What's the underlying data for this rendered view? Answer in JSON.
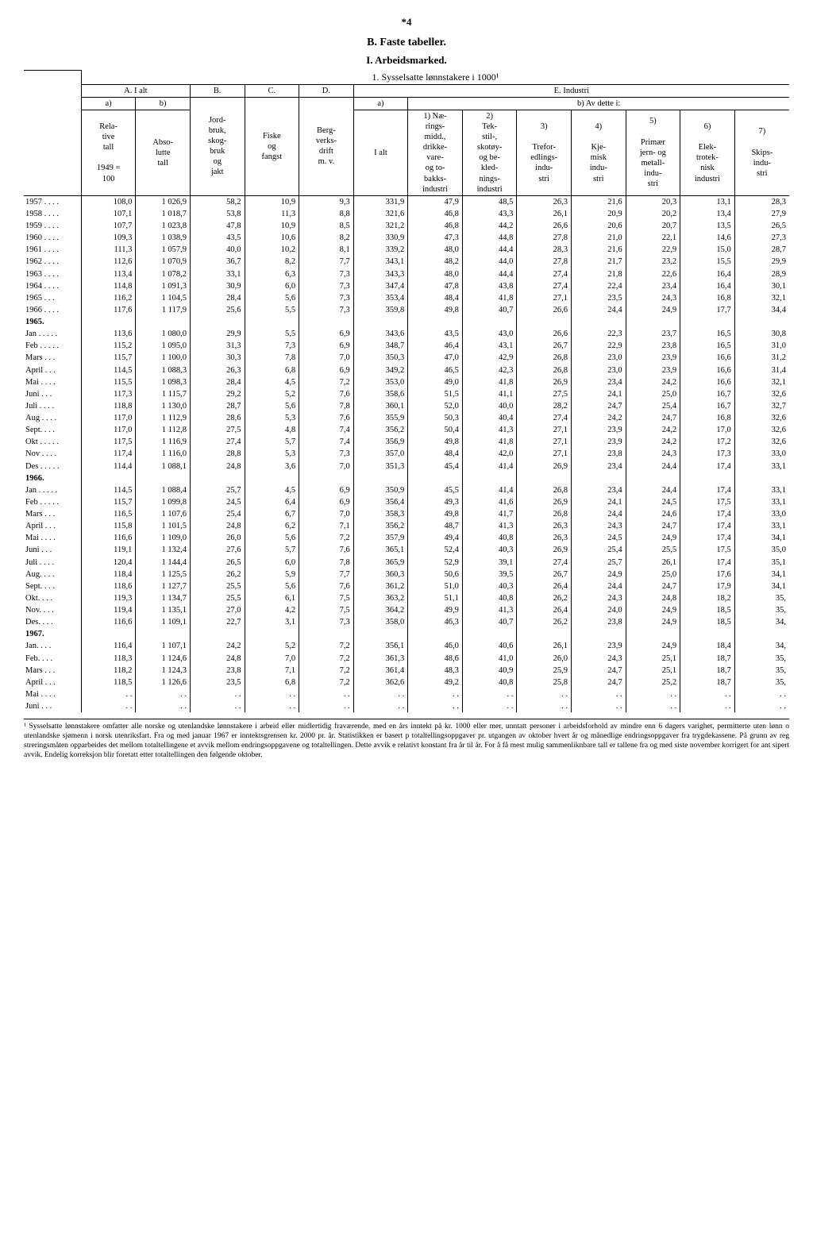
{
  "page_number": "*4",
  "headings": {
    "B": "B. Faste tabeller.",
    "I": "I. Arbeidsmarked.",
    "sub1": "1. Sysselsatte lønnstakere i 1000¹"
  },
  "header": {
    "group_A": "A. I alt",
    "group_B": "B.",
    "group_C": "C.",
    "group_D": "D.",
    "group_E": "E. Industri",
    "a": "a)",
    "b": "b)",
    "b_av_dette": "b) Av dette i:",
    "col_rel": "Rela-\ntive\ntall\n\n1949 =\n100",
    "col_abs": "Abso-\nlutte\ntall",
    "col_jord": "Jord-\nbruk,\nskog-\nbruk\nog\njakt",
    "col_fiske": "Fiske\nog\nfangst",
    "col_berg": "Berg-\nverks-\ndrift\nm. v.",
    "col_ialt": "I alt",
    "col_1": "1) Næ-\nrings-\nmidd.,\ndrikke-\nvare-\nog to-\nbakks-\nindustri",
    "col_2": "2)\nTek-\nstil-,\nskotøy-\nog be-\nkled-\nnings-\nindustri",
    "col_3": "3)\n\nTrefor-\nedlings-\nindu-\nstri",
    "col_4": "4)\n\nKje-\nmisk\nindu-\nstri",
    "col_5": "5)\n\nPrimær\njern- og\nmetall-\nindu-\nstri",
    "col_6": "6)\n\nElek-\ntrotek-\nnisk\nindustri",
    "col_7": "7)\n\nSkips-\nindu-\nstri"
  },
  "rows": [
    {
      "l": "1957 . . . .",
      "d": [
        "108,0",
        "1 026,9",
        "58,2",
        "10,9",
        "9,3",
        "331,9",
        "47,9",
        "48,5",
        "26,3",
        "21,6",
        "20,3",
        "13,1",
        "28,3"
      ]
    },
    {
      "l": "1958 . . . .",
      "d": [
        "107,1",
        "1 018,7",
        "53,8",
        "11,3",
        "8,8",
        "321,6",
        "46,8",
        "43,3",
        "26,1",
        "20,9",
        "20,2",
        "13,4",
        "27,9"
      ]
    },
    {
      "l": "1959 . . . .",
      "d": [
        "107,7",
        "1 023,8",
        "47,8",
        "10,9",
        "8,5",
        "321,2",
        "46,8",
        "44,2",
        "26,6",
        "20,6",
        "20,7",
        "13,5",
        "26,5"
      ]
    },
    {
      "l": "1960 . . . .",
      "d": [
        "109,3",
        "1 038,9",
        "43,5",
        "10,6",
        "8,2",
        "330,9",
        "47,3",
        "44,8",
        "27,8",
        "21,0",
        "22,1",
        "14,6",
        "27,3"
      ]
    },
    {
      "l": "1961 . . . .",
      "d": [
        "111,3",
        "1 057,9",
        "40,0",
        "10,2",
        "8,1",
        "339,2",
        "48,0",
        "44,4",
        "28,3",
        "21,6",
        "22,9",
        "15,0",
        "28,7"
      ]
    },
    {
      "l": "1962 . . . .",
      "d": [
        "112,6",
        "1 070,9",
        "36,7",
        "8,2",
        "7,7",
        "343,1",
        "48,2",
        "44,0",
        "27,8",
        "21,7",
        "23,2",
        "15,5",
        "29,9"
      ]
    },
    {
      "l": "1963 . . . .",
      "d": [
        "113,4",
        "1 078,2",
        "33,1",
        "6,3",
        "7,3",
        "343,3",
        "48,0",
        "44,4",
        "27,4",
        "21,8",
        "22,6",
        "16,4",
        "28,9"
      ]
    },
    {
      "l": "1964 . . . .",
      "d": [
        "114,8",
        "1 091,3",
        "30,9",
        "6,0",
        "7,3",
        "347,4",
        "47,8",
        "43,8",
        "27,4",
        "22,4",
        "23,4",
        "16,4",
        "30,1"
      ]
    },
    {
      "l": "1965 . . .",
      "d": [
        "116,2",
        "1 104,5",
        "28,4",
        "5,6",
        "7,3",
        "353,4",
        "48,4",
        "41,8",
        "27,1",
        "23,5",
        "24,3",
        "16,8",
        "32,1"
      ]
    },
    {
      "l": "1966 . . . .",
      "d": [
        "117,6",
        "1 117,9",
        "25,6",
        "5,5",
        "7,3",
        "359,8",
        "49,8",
        "40,7",
        "26,6",
        "24,4",
        "24,9",
        "17,7",
        "34,4"
      ]
    },
    {
      "l": "1965.",
      "bold": true,
      "d": [
        "",
        "",
        "",
        "",
        "",
        "",
        "",
        "",
        "",
        "",
        "",
        "",
        ""
      ]
    },
    {
      "l": "Jan . . . . .",
      "d": [
        "113,6",
        "1 080,0",
        "29,9",
        "5,5",
        "6,9",
        "343,6",
        "43,5",
        "43,0",
        "26,6",
        "22,3",
        "23,7",
        "16,5",
        "30,8"
      ]
    },
    {
      "l": "Feb . . . . .",
      "d": [
        "115,2",
        "1 095,0",
        "31,3",
        "7,3",
        "6,9",
        "348,7",
        "46,4",
        "43,1",
        "26,7",
        "22,9",
        "23,8",
        "16,5",
        "31,0"
      ]
    },
    {
      "l": "Mars . . .",
      "d": [
        "115,7",
        "1 100,0",
        "30,3",
        "7,8",
        "7,0",
        "350,3",
        "47,0",
        "42,9",
        "26,8",
        "23,0",
        "23,9",
        "16,6",
        "31,2"
      ]
    },
    {
      "l": "April . . .",
      "d": [
        "114,5",
        "1 088,3",
        "26,3",
        "6,8",
        "6,9",
        "349,2",
        "46,5",
        "42,3",
        "26,8",
        "23,0",
        "23,9",
        "16,6",
        "31,4"
      ]
    },
    {
      "l": "Mai . . . .",
      "d": [
        "115,5",
        "1 098,3",
        "28,4",
        "4,5",
        "7,2",
        "353,0",
        "49,0",
        "41,8",
        "26,9",
        "23,4",
        "24,2",
        "16,6",
        "32,1"
      ]
    },
    {
      "l": "Juni . . .",
      "d": [
        "117,3",
        "1 115,7",
        "29,2",
        "5,2",
        "7,6",
        "358,6",
        "51,5",
        "41,1",
        "27,5",
        "24,1",
        "25,0",
        "16,7",
        "32,6"
      ]
    },
    {
      "l": "Juli . . . .",
      "d": [
        "118,8",
        "1 130,0",
        "28,7",
        "5,6",
        "7,8",
        "360,1",
        "52,0",
        "40,0",
        "28,2",
        "24,7",
        "25,4",
        "16,7",
        "32,7"
      ]
    },
    {
      "l": "Aug . . . .",
      "d": [
        "117,0",
        "1 112,9",
        "28,6",
        "5,3",
        "7,6",
        "355,9",
        "50,3",
        "40,4",
        "27,4",
        "24,2",
        "24,7",
        "16,8",
        "32,6"
      ]
    },
    {
      "l": "Sept. . . .",
      "d": [
        "117,0",
        "1 112,8",
        "27,5",
        "4,8",
        "7,4",
        "356,2",
        "50,4",
        "41,3",
        "27,1",
        "23,9",
        "24,2",
        "17,0",
        "32,6"
      ]
    },
    {
      "l": "Okt . . . . .",
      "d": [
        "117,5",
        "1 116,9",
        "27,4",
        "5,7",
        "7,4",
        "356,9",
        "49,8",
        "41,8",
        "27,1",
        "23,9",
        "24,2",
        "17,2",
        "32,6"
      ]
    },
    {
      "l": "Nov . . . .",
      "d": [
        "117,4",
        "1 116,0",
        "28,8",
        "5,3",
        "7,3",
        "357,0",
        "48,4",
        "42,0",
        "27,1",
        "23,8",
        "24,3",
        "17,3",
        "33,0"
      ]
    },
    {
      "l": "Des . . . . .",
      "d": [
        "114,4",
        "1 088,1",
        "24,8",
        "3,6",
        "7,0",
        "351,3",
        "45,4",
        "41,4",
        "26,9",
        "23,4",
        "24,4",
        "17,4",
        "33,1"
      ]
    },
    {
      "l": "1966.",
      "bold": true,
      "d": [
        "",
        "",
        "",
        "",
        "",
        "",
        "",
        "",
        "",
        "",
        "",
        "",
        ""
      ]
    },
    {
      "l": "Jan . . . . .",
      "d": [
        "114,5",
        "1 088,4",
        "25,7",
        "4,5",
        "6,9",
        "350,9",
        "45,5",
        "41,4",
        "26,8",
        "23,4",
        "24,4",
        "17,4",
        "33,1"
      ]
    },
    {
      "l": "Feb . . . . .",
      "d": [
        "115,7",
        "1 099,8",
        "24,5",
        "6,4",
        "6,9",
        "356,4",
        "49,3",
        "41,6",
        "26,9",
        "24,1",
        "24,5",
        "17,5",
        "33,1"
      ]
    },
    {
      "l": "Mars . . .",
      "d": [
        "116,5",
        "1 107,6",
        "25,4",
        "6,7",
        "7,0",
        "358,3",
        "49,8",
        "41,7",
        "26,8",
        "24,4",
        "24,6",
        "17,4",
        "33,0"
      ]
    },
    {
      "l": "April . . .",
      "d": [
        "115,8",
        "1 101,5",
        "24,8",
        "6,2",
        "7,1",
        "356,2",
        "48,7",
        "41,3",
        "26,3",
        "24,3",
        "24,7",
        "17,4",
        "33,1"
      ]
    },
    {
      "l": "Mai . . . .",
      "d": [
        "116,6",
        "1 109,0",
        "26,0",
        "5,6",
        "7,2",
        "357,9",
        "49,4",
        "40,8",
        "26,3",
        "24,5",
        "24,9",
        "17,4",
        "34,1"
      ]
    },
    {
      "l": "Juni . . .",
      "d": [
        "119,1",
        "1 132,4",
        "27,6",
        "5,7",
        "7,6",
        "365,1",
        "52,4",
        "40,3",
        "26,9",
        "25,4",
        "25,5",
        "17,5",
        "35,0"
      ]
    },
    {
      "l": "Juli . . . .",
      "d": [
        "120,4",
        "1 144,4",
        "26,5",
        "6,0",
        "7,8",
        "365,9",
        "52,9",
        "39,1",
        "27,4",
        "25,7",
        "26,1",
        "17,4",
        "35,1"
      ]
    },
    {
      "l": "Aug. . . .",
      "d": [
        "118,4",
        "1 125,5",
        "26,2",
        "5,9",
        "7,7",
        "360,3",
        "50,6",
        "39,5",
        "26,7",
        "24,9",
        "25,0",
        "17,6",
        "34,1"
      ]
    },
    {
      "l": "Sept. . . .",
      "d": [
        "118,6",
        "1 127,7",
        "25,5",
        "5,6",
        "7,6",
        "361,2",
        "51,0",
        "40,3",
        "26,4",
        "24,4",
        "24,7",
        "17,9",
        "34,1"
      ]
    },
    {
      "l": "Okt. . . .",
      "d": [
        "119,3",
        "1 134,7",
        "25,5",
        "6,1",
        "7,5",
        "363,2",
        "51,1",
        "40,8",
        "26,2",
        "24,3",
        "24,8",
        "18,2",
        "35,"
      ]
    },
    {
      "l": "Nov. . . .",
      "d": [
        "119,4",
        "1 135,1",
        "27,0",
        "4,2",
        "7,5",
        "364,2",
        "49,9",
        "41,3",
        "26,4",
        "24,0",
        "24,9",
        "18,5",
        "35,"
      ]
    },
    {
      "l": "Des. . . .",
      "d": [
        "116,6",
        "1 109,1",
        "22,7",
        "3,1",
        "7,3",
        "358,0",
        "46,3",
        "40,7",
        "26,2",
        "23,8",
        "24,9",
        "18,5",
        "34,"
      ]
    },
    {
      "l": "1967.",
      "bold": true,
      "d": [
        "",
        "",
        "",
        "",
        "",
        "",
        "",
        "",
        "",
        "",
        "",
        "",
        ""
      ]
    },
    {
      "l": "Jan. . . .",
      "d": [
        "116,4",
        "1 107,1",
        "24,2",
        "5,2",
        "7,2",
        "356,1",
        "46,0",
        "40,6",
        "26,1",
        "23,9",
        "24,9",
        "18,4",
        "34,"
      ]
    },
    {
      "l": "Feb. . . .",
      "d": [
        "118,3",
        "1 124,6",
        "24,8",
        "7,0",
        "7,2",
        "361,3",
        "48,6",
        "41,0",
        "26,0",
        "24,3",
        "25,1",
        "18,7",
        "35,"
      ]
    },
    {
      "l": "Mars . . .",
      "d": [
        "118,2",
        "1 124,3",
        "23,8",
        "7,1",
        "7,2",
        "361,4",
        "48,3",
        "40,9",
        "25,9",
        "24,7",
        "25,1",
        "18,7",
        "35,"
      ]
    },
    {
      "l": "April . . .",
      "d": [
        "118,5",
        "1 126,6",
        "23,5",
        "6,8",
        "7,2",
        "362,6",
        "49,2",
        "40,8",
        "25,8",
        "24,7",
        "25,2",
        "18,7",
        "35,"
      ]
    },
    {
      "l": "Mai . . . .",
      "d": [
        ". .",
        ". .",
        ". .",
        ". .",
        ". .",
        ". .",
        ". .",
        ". .",
        ". .",
        ". .",
        ". .",
        ". .",
        ". ."
      ]
    },
    {
      "l": "Juni . . .",
      "d": [
        ". .",
        ". .",
        ". .",
        ". .",
        ". .",
        ". .",
        ". .",
        ". .",
        ". .",
        ". .",
        ". .",
        ". .",
        ". ."
      ]
    }
  ],
  "footnote": "¹ Sysselsatte lønnstakere omfatter alle norske og utenlandske lønnstakere i arbeid eller midlertidig fraværende, med en års inntekt på kr. 1000 eller mer, unntatt personer i arbeidsforhold av mindre enn 6 dagers varighet, permitterte uten lønn o utenlandske sjømenn i norsk utenriksfart. Fra og med januar 1967 er inntektsgrensen kr. 2000 pr. år. Statistikken er basert p totaltellingsoppgaver pr. utgangen av oktober hvert år og månedlige endringsoppgaver fra trygdekassene. På grunn av reg streringsmåten opparbeides det mellom totaltellingene et avvik mellom endringsoppgavene og totaltellingen. Dette avvik e relativt konstant fra år til år. For å få mest mulig sammenliknbare tall er tallene fra og med siste november korrigert for ant sipert avvik. Endelig korreksjon blir foretatt etter totaltellingen den følgende oktober."
}
